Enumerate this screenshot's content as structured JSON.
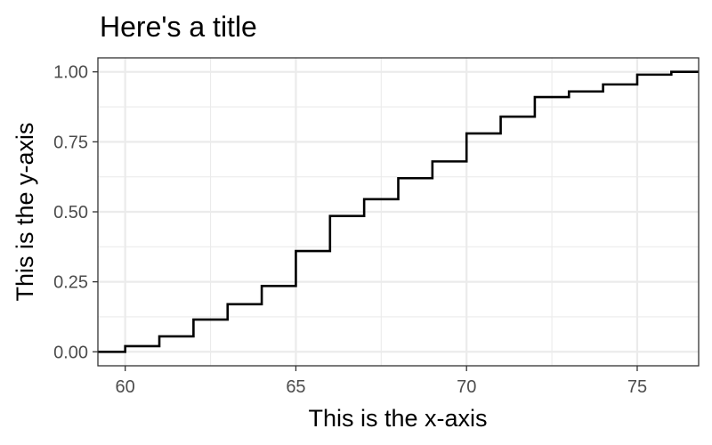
{
  "chart_data": {
    "type": "line",
    "subtype": "step-ecdf",
    "title": "Here's a title",
    "xlabel": "This is the x-axis",
    "ylabel": "This is the y-axis",
    "xlim": [
      59.2,
      76.8
    ],
    "ylim": [
      -0.05,
      1.05
    ],
    "x_ticks": [
      60,
      65,
      70,
      75
    ],
    "x_tick_labels": [
      "60",
      "65",
      "70",
      "75"
    ],
    "x_minor_ticks": [
      62.5,
      67.5,
      72.5
    ],
    "y_ticks": [
      0,
      0.25,
      0.5,
      0.75,
      1
    ],
    "y_tick_labels": [
      "0.00",
      "0.25",
      "0.50",
      "0.75",
      "1.00"
    ],
    "y_minor_ticks": [
      0.125,
      0.375,
      0.625,
      0.875
    ],
    "grid": true,
    "colors": {
      "line": "#000000",
      "grid": "#ebebeb",
      "panel_border": "#333333",
      "tick_text": "#4d4d4d"
    },
    "series": [
      {
        "x": [
          60,
          61,
          62,
          63,
          64,
          65,
          66,
          67,
          68,
          69,
          70,
          71,
          72,
          73,
          74,
          75,
          76
        ],
        "y": [
          0.02,
          0.055,
          0.115,
          0.17,
          0.235,
          0.36,
          0.485,
          0.545,
          0.62,
          0.68,
          0.78,
          0.84,
          0.91,
          0.93,
          0.955,
          0.99,
          1.0
        ]
      }
    ]
  }
}
